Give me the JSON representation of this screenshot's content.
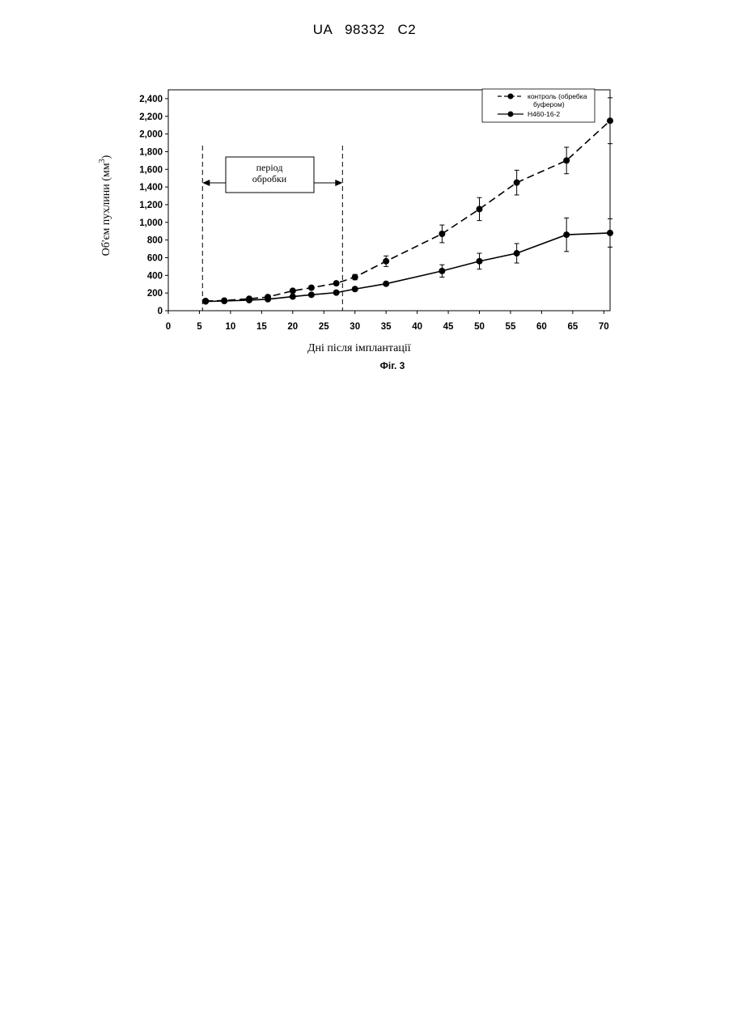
{
  "header": {
    "text": "UA   98332   C2"
  },
  "figure_caption": "Фіг. 3",
  "annotation": {
    "line1": "період",
    "line2": "обробки"
  },
  "chart_data": {
    "type": "line",
    "xlabel": "Дні після імплантації",
    "ylabel_main": "Об'єм пухлини (мм",
    "ylabel_sup": "3",
    "ylabel_close": ")",
    "xlim": [
      0,
      71
    ],
    "ylim": [
      0,
      2500
    ],
    "xticks": [
      0,
      5,
      10,
      15,
      20,
      25,
      30,
      35,
      40,
      45,
      50,
      55,
      60,
      65,
      70
    ],
    "xtick_labels": [
      "0",
      "5",
      "10",
      "15",
      "20",
      "25",
      "30",
      "35",
      "40",
      "45",
      "50",
      "55",
      "60",
      "65",
      "70"
    ],
    "yticks": [
      0,
      200,
      400,
      600,
      800,
      1000,
      1200,
      1400,
      1600,
      1800,
      2000,
      2200,
      2400
    ],
    "ytick_labels": [
      "0",
      "200",
      "400",
      "600",
      "800",
      "1,000",
      "1,200",
      "1,400",
      "1,600",
      "1,800",
      "2,000",
      "2,200",
      "2,400"
    ],
    "treatment_period": [
      5.5,
      28
    ],
    "legend_position": "top-right",
    "series": [
      {
        "name_line1": "контроль (обребка",
        "name_line2": "буфером)",
        "style": "dashed",
        "x": [
          6,
          9,
          13,
          16,
          20,
          23,
          27,
          30,
          35,
          44,
          50,
          56,
          64,
          71
        ],
        "y": [
          110,
          115,
          135,
          155,
          225,
          260,
          310,
          380,
          560,
          870,
          1150,
          1450,
          1700,
          2150
        ],
        "err": [
          10,
          10,
          10,
          15,
          20,
          20,
          20,
          30,
          60,
          100,
          130,
          140,
          150,
          260
        ]
      },
      {
        "name_line1": "H460-16-2",
        "name_line2": "",
        "style": "solid",
        "x": [
          6,
          9,
          13,
          16,
          20,
          23,
          27,
          30,
          35,
          44,
          50,
          56,
          64,
          71
        ],
        "y": [
          105,
          110,
          120,
          130,
          160,
          180,
          205,
          245,
          305,
          450,
          560,
          650,
          860,
          880
        ],
        "err": [
          10,
          10,
          10,
          10,
          15,
          15,
          15,
          15,
          20,
          70,
          90,
          110,
          190,
          160
        ]
      }
    ]
  }
}
